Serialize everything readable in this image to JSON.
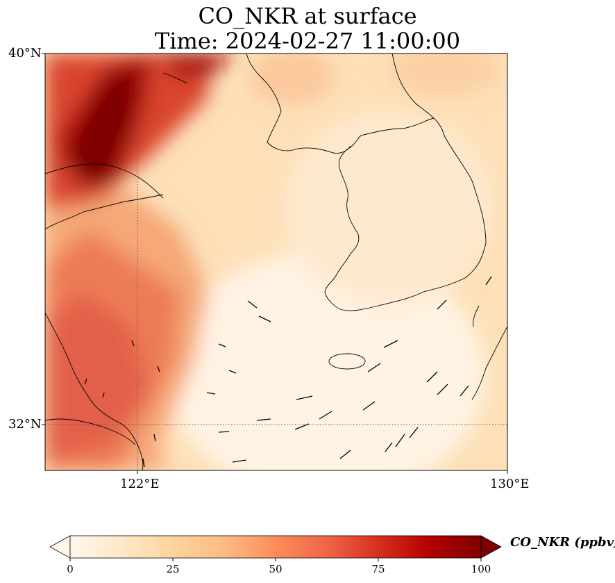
{
  "title": {
    "line1": "CO_NKR at surface",
    "line2": "Time: 2024-02-27 11:00:00"
  },
  "axes": {
    "lat_ticks": [
      {
        "label": "40°N",
        "value": 40
      },
      {
        "label": "32°N",
        "value": 32
      }
    ],
    "lon_ticks": [
      {
        "label": "122°E",
        "value": 122
      },
      {
        "label": "130°E",
        "value": 130
      }
    ],
    "lon_range": [
      120,
      130
    ],
    "lat_range": [
      31,
      40
    ]
  },
  "colorbar": {
    "label": "CO_NKR (ppbv)",
    "min": 0,
    "max": 100,
    "extend": "both",
    "colormap": "OrRd",
    "ticks": [
      "0",
      "25",
      "50",
      "75",
      "100"
    ],
    "colors": [
      "#fff7ec",
      "#fee8c8",
      "#fdd49e",
      "#fdbb84",
      "#fc8d59",
      "#ef6548",
      "#d7301f",
      "#b30000",
      "#7f0000"
    ]
  },
  "gridlines": {
    "lon": [
      122
    ],
    "lat": [
      32
    ],
    "style": "dotted"
  }
}
